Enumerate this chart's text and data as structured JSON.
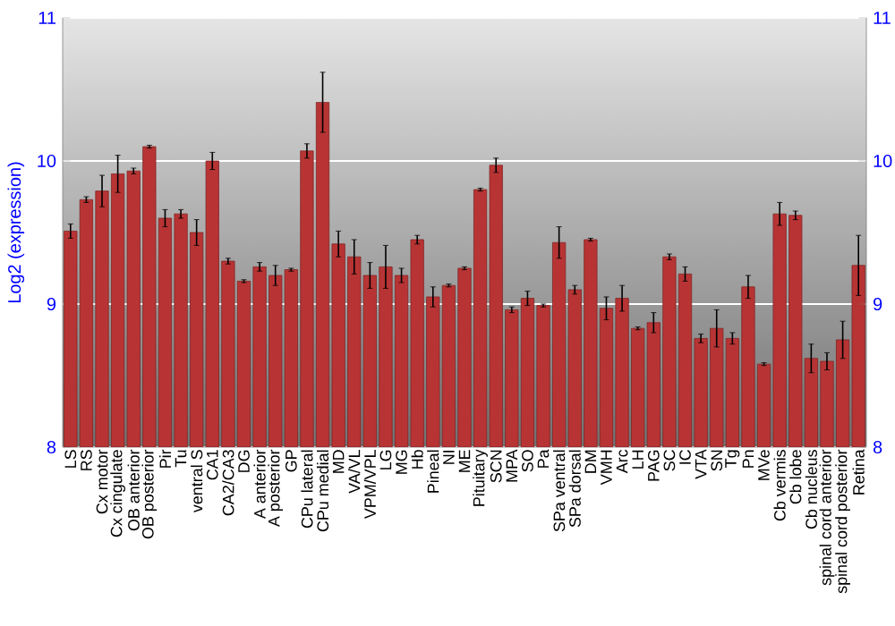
{
  "chart_data": {
    "type": "bar",
    "ylabel": "Log2 (expression)",
    "categories": [
      "LS",
      "RS",
      "Cx motor",
      "Cx cingulate",
      "OB anterior",
      "OB posterior",
      "Pir",
      "Tu",
      "ventral S",
      "CA1",
      "CA2/CA3",
      "DG",
      "A anterior",
      "A posterior",
      "GP",
      "CPu lateral",
      "CPu medial",
      "MD",
      "VA/VL",
      "VPM/VPL",
      "LG",
      "MG",
      "Hb",
      "Pineal",
      "NI",
      "ME",
      "Pituitary",
      "SCN",
      "MPA",
      "SO",
      "Pa",
      "SPa ventral",
      "SPa dorsal",
      "DM",
      "VMH",
      "Arc",
      "LH",
      "PAG",
      "SC",
      "IC",
      "VTA",
      "SN",
      "Tg",
      "Pn",
      "MVe",
      "Cb vermis",
      "Cb lobe",
      "Cb nucleus",
      "spinal cord anterior",
      "spinal cord posterior",
      "Retina"
    ],
    "values": [
      9.51,
      9.73,
      9.79,
      9.91,
      9.93,
      10.1,
      9.6,
      9.63,
      9.5,
      10.0,
      9.3,
      9.16,
      9.26,
      9.2,
      9.24,
      10.07,
      10.41,
      9.42,
      9.33,
      9.2,
      9.26,
      9.2,
      9.45,
      9.05,
      9.13,
      9.25,
      9.8,
      9.97,
      8.96,
      9.04,
      8.99,
      9.43,
      9.1,
      9.45,
      8.97,
      9.04,
      8.83,
      8.87,
      9.33,
      9.21,
      8.76,
      8.83,
      8.76,
      9.12,
      8.58,
      9.63,
      9.62,
      8.62,
      8.6,
      8.75,
      9.27
    ],
    "errors": [
      0.05,
      0.02,
      0.11,
      0.13,
      0.02,
      0.01,
      0.06,
      0.03,
      0.09,
      0.06,
      0.02,
      0.01,
      0.03,
      0.07,
      0.01,
      0.05,
      0.21,
      0.09,
      0.12,
      0.09,
      0.15,
      0.05,
      0.03,
      0.07,
      0.01,
      0.01,
      0.01,
      0.05,
      0.02,
      0.05,
      0.01,
      0.11,
      0.03,
      0.01,
      0.08,
      0.09,
      0.01,
      0.07,
      0.02,
      0.05,
      0.03,
      0.13,
      0.04,
      0.08,
      0.01,
      0.08,
      0.03,
      0.1,
      0.06,
      0.13,
      0.21
    ],
    "color": "#b83434",
    "ylim": [
      8,
      11
    ],
    "yticks": [
      8,
      9,
      10,
      11
    ],
    "y2lim": [
      8,
      11
    ],
    "y2ticks": [
      8,
      9,
      10,
      11
    ],
    "grid": "y"
  }
}
